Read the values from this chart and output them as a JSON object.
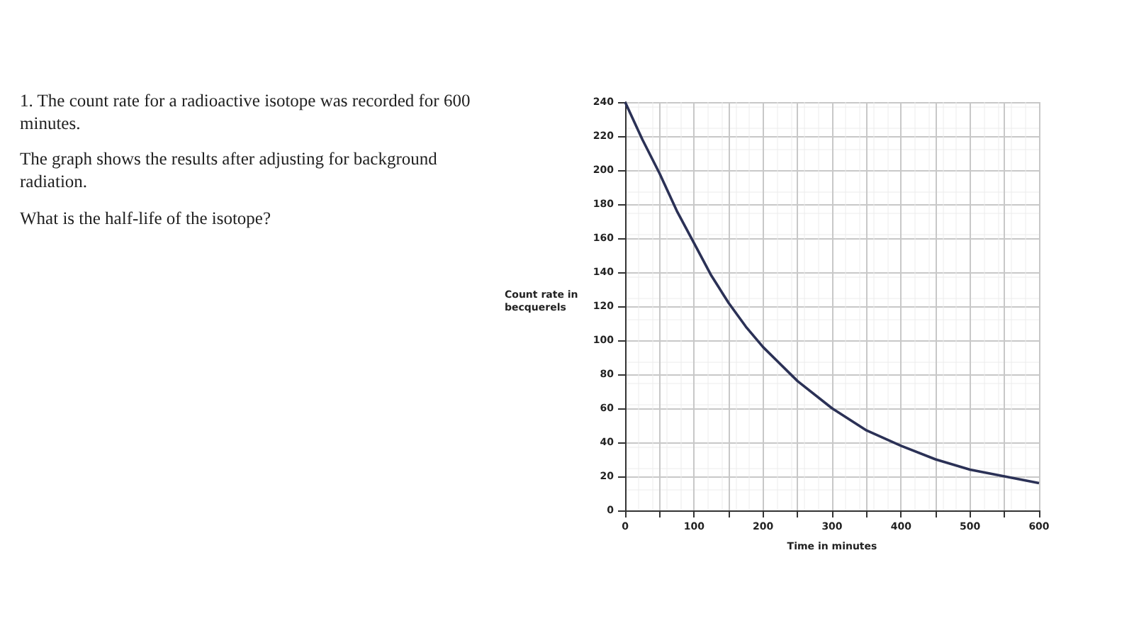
{
  "chart_data": {
    "type": "line",
    "xlabel": "Time in minutes",
    "ylabel": "Count rate in becquerels",
    "annotations": [
      "1. The count rate for a radioactive isotope was recorded for 600 minutes.",
      "The graph shows the results after adjusting for background radiation.",
      "What is the half-life of the isotope?"
    ],
    "x": [
      0,
      25,
      50,
      75,
      100,
      125,
      150,
      175,
      200,
      250,
      300,
      350,
      400,
      450,
      500,
      550,
      600
    ],
    "series": [
      {
        "color": "#2b3156",
        "values": [
          240,
          218,
          198,
          176,
          157,
          138,
          122,
          108,
          96,
          76,
          60,
          47,
          38,
          30,
          24,
          20,
          16
        ]
      }
    ],
    "xlim": [
      0,
      600
    ],
    "xticks": [
      0,
      {
        "value": 50,
        "label": null
      },
      100,
      {
        "value": 150,
        "label": null
      },
      200,
      {
        "value": 250,
        "label": null
      },
      300,
      {
        "value": 350,
        "label": null
      },
      400,
      {
        "value": 450,
        "label": null
      },
      500,
      {
        "value": 550,
        "label": null
      },
      600
    ],
    "ylim": [
      0,
      240
    ],
    "yticks": [
      0,
      20,
      40,
      60,
      80,
      100,
      120,
      140,
      160,
      180,
      200,
      220,
      240
    ],
    "grid": true,
    "marker": "none",
    "line_style": "solid"
  }
}
